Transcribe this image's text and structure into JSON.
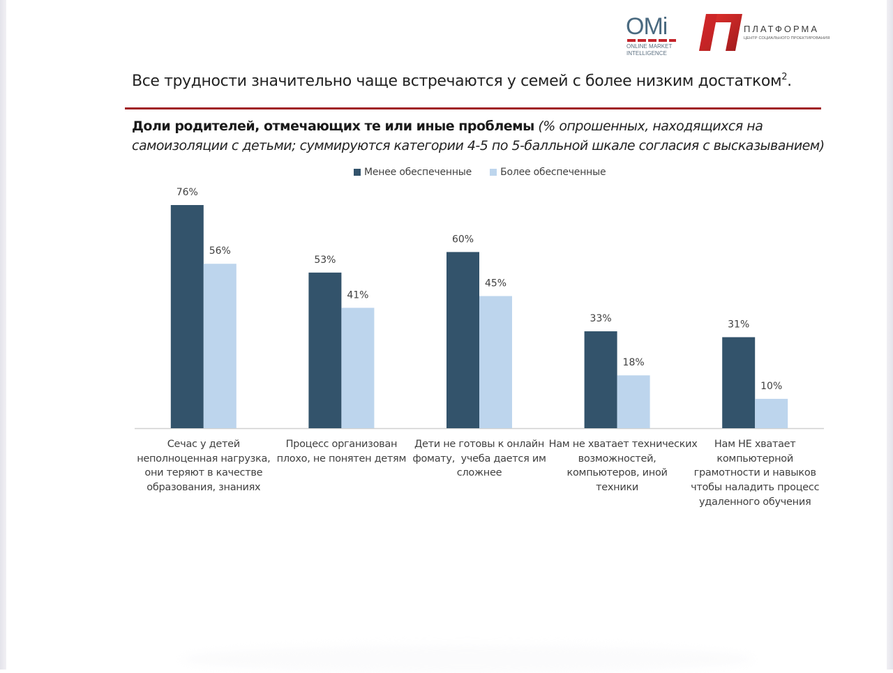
{
  "logos": {
    "omi": {
      "letters": "OMi",
      "line1": "ONLINE MARKET",
      "line2": "INTELLIGENCE"
    },
    "platforma": {
      "name": "ПЛАТФОРМА",
      "tagline": "ЦЕНТР СОЦИАЛЬНОГО ПРОЕКТИРОВАНИЯ"
    }
  },
  "headline": {
    "text": "Все трудности значительно чаще встречаются у семей с более низким достатком",
    "superscript": "2",
    "end": "."
  },
  "subtitle": {
    "bold": "Доли родителей, отмечающих те или иные проблемы",
    "italic": " (% опрошенных, находящихся на самоизоляции с детьми; суммируются категории 4-5 по 5-балльной шкале согласия с высказыванием)"
  },
  "colors": {
    "accent_rule": "#a01c24",
    "series_dark": "#33536b",
    "series_light": "#bdd5ed",
    "axis": "#d0d0d0"
  },
  "chart_data": {
    "type": "bar",
    "title": "Доли родителей, отмечающих те или иные проблемы",
    "xlabel": "",
    "ylabel": "",
    "ylim": [
      0,
      80
    ],
    "grid": false,
    "legend_position": "top",
    "categories": [
      "Сечас у детей неполноценная нагрузка, они теряют в качестве образования, знаниях",
      "Процесс организован плохо, не понятен детям",
      "Дети не готовы к онлайн фомату,  учеба дается им сложнее",
      "Нам не хватает технических возможностей, компьютеров, иной техники",
      "Нам НЕ хватает компьютерной грамотности и навыков чтобы наладить процесс удаленного обучения"
    ],
    "category_lines": [
      [
        "Сечас у детей",
        "неполноценная нагрузка,",
        "они теряют в качестве",
        "образования, знаниях"
      ],
      [
        "Процесс организован",
        "плохо, не понятен детям"
      ],
      [
        "Дети не готовы к онлайн",
        "фомату,  учеба дается им",
        "сложнее"
      ],
      [
        "Нам не хватает технических",
        "возможностей,",
        "компьютеров, иной",
        "техники"
      ],
      [
        "Нам НЕ хватает",
        "компьютерной",
        "грамотности и навыков",
        "чтобы наладить процесс",
        "удаленного обучения"
      ]
    ],
    "series": [
      {
        "name": "Менее обеспеченные",
        "color": "#33536b",
        "values": [
          76,
          53,
          60,
          33,
          31
        ],
        "labels": [
          "76%",
          "53%",
          "60%",
          "33%",
          "31%"
        ]
      },
      {
        "name": "Более обеспеченные",
        "color": "#bdd5ed",
        "values": [
          56,
          41,
          45,
          18,
          10
        ],
        "labels": [
          "56%",
          "41%",
          "45%",
          "18%",
          "10%"
        ]
      }
    ]
  }
}
